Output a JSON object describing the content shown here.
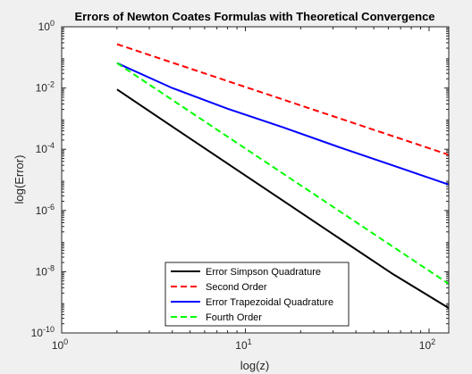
{
  "chart_data": {
    "type": "line",
    "title": "Errors of Newton Coates Formulas with Theoretical Convergence",
    "xlabel": "log(z)",
    "ylabel": "log(Error)",
    "xscale": "log",
    "yscale": "log",
    "xlim": [
      1,
      128
    ],
    "ylim": [
      1e-10,
      1
    ],
    "x_ticks": [
      1,
      10,
      100
    ],
    "x_tick_labels": [
      [
        "10",
        "0"
      ],
      [
        "10",
        "1"
      ],
      [
        "10",
        "2"
      ]
    ],
    "y_ticks": [
      1e-10,
      1e-08,
      1e-06,
      0.0001,
      0.01,
      1
    ],
    "y_tick_labels": [
      [
        "10",
        "-10"
      ],
      [
        "10",
        "-8"
      ],
      [
        "10",
        "-6"
      ],
      [
        "10",
        "-4"
      ],
      [
        "10",
        "-2"
      ],
      [
        "10",
        "0"
      ]
    ],
    "grid": false,
    "legend_position": "bottom-center",
    "series": [
      {
        "name": "Error Simpson Quadrature",
        "color": "#000000",
        "dash": "solid",
        "x": [
          2,
          4,
          8,
          16,
          32,
          64,
          128
        ],
        "y": [
          0.009,
          0.00055,
          3.4e-05,
          2.1e-06,
          1.3e-07,
          8.2e-09,
          6.5e-10
        ]
      },
      {
        "name": "Second Order",
        "color": "#ff0000",
        "dash": "dashed",
        "x": [
          2,
          128
        ],
        "y": [
          0.27,
          6.6e-05
        ]
      },
      {
        "name": "Error Trapezoidal Quadrature",
        "color": "#0000ff",
        "dash": "solid",
        "x": [
          2,
          4,
          8,
          16,
          32,
          64,
          128
        ],
        "y": [
          0.065,
          0.01,
          0.0021,
          0.00052,
          0.00012,
          2.9e-05,
          7e-06
        ]
      },
      {
        "name": "Fourth Order",
        "color": "#00ff00",
        "dash": "dashed",
        "x": [
          2,
          128
        ],
        "y": [
          0.065,
          4e-09
        ]
      }
    ]
  }
}
